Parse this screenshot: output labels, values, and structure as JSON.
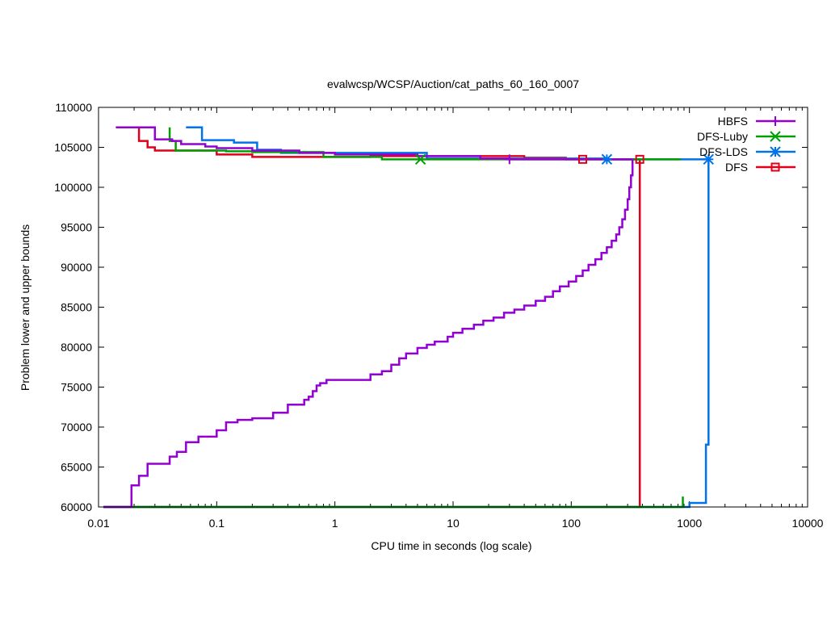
{
  "chart_data": {
    "type": "line",
    "title": "evalwcsp/WCSP/Auction/cat_paths_60_160_0007",
    "xlabel": "CPU time in seconds (log scale)",
    "ylabel": "Problem lower and upper bounds",
    "xscale": "log",
    "xlim": [
      0.01,
      10000
    ],
    "ylim": [
      60000,
      110000
    ],
    "xticks": [
      0.01,
      0.1,
      1,
      10,
      100,
      1000,
      10000
    ],
    "xtick_labels": [
      "0.01",
      "0.1",
      "1",
      "10",
      "100",
      "1000",
      "10000"
    ],
    "yticks": [
      60000,
      65000,
      70000,
      75000,
      80000,
      85000,
      90000,
      95000,
      100000,
      105000,
      110000
    ],
    "ytick_labels": [
      "60000",
      "65000",
      "70000",
      "75000",
      "80000",
      "85000",
      "90000",
      "95000",
      "100000",
      "105000",
      "110000"
    ],
    "grid": false,
    "legend_position": "top-right",
    "series": [
      {
        "name": "HBFS",
        "color": "#9400d3",
        "marker": "plus",
        "upper": [
          [
            0.014,
            107500
          ],
          [
            0.03,
            107500
          ],
          [
            0.03,
            106000
          ],
          [
            0.042,
            106000
          ],
          [
            0.042,
            105800
          ],
          [
            0.05,
            105800
          ],
          [
            0.05,
            105400
          ],
          [
            0.08,
            105400
          ],
          [
            0.08,
            105100
          ],
          [
            0.1,
            105100
          ],
          [
            0.1,
            104900
          ],
          [
            0.2,
            104900
          ],
          [
            0.2,
            104600
          ],
          [
            0.5,
            104600
          ],
          [
            0.5,
            104300
          ],
          [
            1,
            104300
          ],
          [
            1,
            104100
          ],
          [
            5,
            104100
          ],
          [
            5,
            103900
          ],
          [
            17,
            103900
          ],
          [
            17,
            103600
          ],
          [
            30,
            103600
          ],
          [
            30,
            103500
          ],
          [
            330,
            103500
          ]
        ],
        "lower": [
          [
            0.011,
            60000
          ],
          [
            0.019,
            60000
          ],
          [
            0.019,
            62700
          ],
          [
            0.022,
            62700
          ],
          [
            0.022,
            63900
          ],
          [
            0.026,
            63900
          ],
          [
            0.026,
            65400
          ],
          [
            0.04,
            65400
          ],
          [
            0.04,
            66300
          ],
          [
            0.046,
            66300
          ],
          [
            0.046,
            66900
          ],
          [
            0.055,
            66900
          ],
          [
            0.055,
            68100
          ],
          [
            0.07,
            68100
          ],
          [
            0.07,
            68800
          ],
          [
            0.1,
            68800
          ],
          [
            0.1,
            69600
          ],
          [
            0.12,
            69600
          ],
          [
            0.12,
            70600
          ],
          [
            0.15,
            70600
          ],
          [
            0.15,
            70900
          ],
          [
            0.2,
            70900
          ],
          [
            0.2,
            71100
          ],
          [
            0.3,
            71100
          ],
          [
            0.3,
            71800
          ],
          [
            0.4,
            71800
          ],
          [
            0.4,
            72800
          ],
          [
            0.55,
            72800
          ],
          [
            0.55,
            73400
          ],
          [
            0.6,
            73400
          ],
          [
            0.6,
            73800
          ],
          [
            0.65,
            73800
          ],
          [
            0.65,
            74500
          ],
          [
            0.7,
            74500
          ],
          [
            0.7,
            75200
          ],
          [
            0.75,
            75200
          ],
          [
            0.75,
            75500
          ],
          [
            0.85,
            75500
          ],
          [
            0.85,
            75900
          ],
          [
            2,
            75900
          ],
          [
            2,
            76600
          ],
          [
            2.5,
            76600
          ],
          [
            2.5,
            77000
          ],
          [
            3,
            77000
          ],
          [
            3,
            77800
          ],
          [
            3.5,
            77800
          ],
          [
            3.5,
            78600
          ],
          [
            4,
            78600
          ],
          [
            4,
            79200
          ],
          [
            5,
            79200
          ],
          [
            5,
            79900
          ],
          [
            6,
            79900
          ],
          [
            6,
            80300
          ],
          [
            7,
            80300
          ],
          [
            7,
            80700
          ],
          [
            9,
            80700
          ],
          [
            9,
            81300
          ],
          [
            10,
            81300
          ],
          [
            10,
            81800
          ],
          [
            12,
            81800
          ],
          [
            12,
            82300
          ],
          [
            15,
            82300
          ],
          [
            15,
            82800
          ],
          [
            18,
            82800
          ],
          [
            18,
            83300
          ],
          [
            22,
            83300
          ],
          [
            22,
            83700
          ],
          [
            27,
            83700
          ],
          [
            27,
            84300
          ],
          [
            33,
            84300
          ],
          [
            33,
            84700
          ],
          [
            40,
            84700
          ],
          [
            40,
            85200
          ],
          [
            50,
            85200
          ],
          [
            50,
            85800
          ],
          [
            60,
            85800
          ],
          [
            60,
            86300
          ],
          [
            70,
            86300
          ],
          [
            70,
            87000
          ],
          [
            80,
            87000
          ],
          [
            80,
            87600
          ],
          [
            95,
            87600
          ],
          [
            95,
            88200
          ],
          [
            110,
            88200
          ],
          [
            110,
            88900
          ],
          [
            125,
            88900
          ],
          [
            125,
            89600
          ],
          [
            140,
            89600
          ],
          [
            140,
            90300
          ],
          [
            160,
            90300
          ],
          [
            160,
            91000
          ],
          [
            180,
            91000
          ],
          [
            180,
            91800
          ],
          [
            200,
            91800
          ],
          [
            200,
            92500
          ],
          [
            220,
            92500
          ],
          [
            220,
            93300
          ],
          [
            240,
            93300
          ],
          [
            240,
            94100
          ],
          [
            255,
            94100
          ],
          [
            255,
            95000
          ],
          [
            270,
            95000
          ],
          [
            270,
            96000
          ],
          [
            285,
            96000
          ],
          [
            285,
            97200
          ],
          [
            300,
            97200
          ],
          [
            300,
            98500
          ],
          [
            310,
            98500
          ],
          [
            310,
            100000
          ],
          [
            320,
            100000
          ],
          [
            320,
            101500
          ],
          [
            330,
            101500
          ],
          [
            330,
            103500
          ]
        ],
        "markers": [
          [
            30,
            103500
          ]
        ]
      },
      {
        "name": "DFS-Luby",
        "color": "#009e00",
        "marker": "x",
        "upper": [
          [
            0.04,
            107500
          ],
          [
            0.04,
            105800
          ],
          [
            0.045,
            105800
          ],
          [
            0.045,
            104600
          ],
          [
            0.12,
            104600
          ],
          [
            0.12,
            104500
          ],
          [
            0.2,
            104500
          ],
          [
            0.2,
            104400
          ],
          [
            0.8,
            104400
          ],
          [
            0.8,
            103800
          ],
          [
            2.5,
            103800
          ],
          [
            2.5,
            103500
          ],
          [
            5.3,
            103500
          ],
          [
            850,
            103500
          ]
        ],
        "lower": [
          [
            0.011,
            60000
          ],
          [
            880,
            60000
          ],
          [
            880,
            61300
          ]
        ],
        "markers": [
          [
            5.3,
            103500
          ]
        ]
      },
      {
        "name": "DFS-LDS",
        "color": "#0072ea",
        "marker": "star",
        "upper": [
          [
            0.055,
            107500
          ],
          [
            0.075,
            107500
          ],
          [
            0.075,
            105900
          ],
          [
            0.14,
            105900
          ],
          [
            0.14,
            105600
          ],
          [
            0.22,
            105600
          ],
          [
            0.22,
            104700
          ],
          [
            0.35,
            104700
          ],
          [
            0.35,
            104300
          ],
          [
            6,
            104300
          ],
          [
            6,
            103600
          ],
          [
            200,
            103600
          ],
          [
            200,
            103500
          ],
          [
            1450,
            103500
          ]
        ],
        "lower": [
          [
            0.011,
            60000
          ],
          [
            1000,
            60000
          ],
          [
            1000,
            60500
          ],
          [
            1380,
            60500
          ],
          [
            1380,
            67800
          ],
          [
            1450,
            67800
          ],
          [
            1450,
            103500
          ]
        ],
        "markers": [
          [
            200,
            103500
          ],
          [
            1450,
            103500
          ]
        ]
      },
      {
        "name": "DFS",
        "color": "#e0001a",
        "marker": "square",
        "upper": [
          [
            0.022,
            107500
          ],
          [
            0.022,
            105800
          ],
          [
            0.026,
            105800
          ],
          [
            0.026,
            105000
          ],
          [
            0.03,
            105000
          ],
          [
            0.03,
            104600
          ],
          [
            0.1,
            104600
          ],
          [
            0.1,
            104100
          ],
          [
            0.2,
            104100
          ],
          [
            0.2,
            103800
          ],
          [
            2,
            103800
          ],
          [
            2,
            103900
          ],
          [
            40,
            103900
          ],
          [
            40,
            103700
          ],
          [
            90,
            103700
          ],
          [
            90,
            103500
          ],
          [
            380,
            103500
          ]
        ],
        "lower": [
          [
            0.011,
            60000
          ],
          [
            380,
            60000
          ],
          [
            380,
            103500
          ]
        ],
        "markers": [
          [
            125,
            103500
          ],
          [
            380,
            103500
          ]
        ]
      }
    ]
  }
}
